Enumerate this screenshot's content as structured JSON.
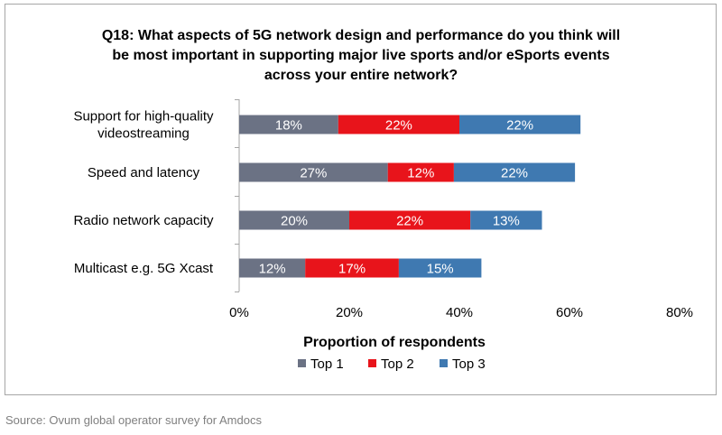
{
  "chart_data": {
    "type": "bar",
    "orientation": "horizontal",
    "stacked": true,
    "title_lines": [
      "Q18: What aspects of 5G network design and performance do you think will",
      "be most important in supporting major live sports and/or eSports events",
      "across your entire network?"
    ],
    "categories": [
      [
        "Support for high-quality",
        "videostreaming"
      ],
      [
        "Speed and latency"
      ],
      [
        "Radio network capacity"
      ],
      [
        "Multicast e.g. 5G Xcast"
      ]
    ],
    "series": [
      {
        "name": "Top 1",
        "color": "#6b7284",
        "values": [
          18,
          27,
          20,
          12
        ],
        "labels": [
          "18%",
          "27%",
          "20%",
          "12%"
        ]
      },
      {
        "name": "Top 2",
        "color": "#e8141b",
        "values": [
          22,
          12,
          22,
          17
        ],
        "labels": [
          "22%",
          "12%",
          "22%",
          "17%"
        ]
      },
      {
        "name": "Top 3",
        "color": "#3f79b1",
        "values": [
          22,
          22,
          13,
          15
        ],
        "labels": [
          "22%",
          "22%",
          "13%",
          "15%"
        ]
      }
    ],
    "xlim": [
      0,
      80
    ],
    "xticks": [
      0,
      20,
      40,
      60,
      80
    ],
    "xtick_labels": [
      "0%",
      "20%",
      "40%",
      "60%",
      "80%"
    ],
    "xlabel": "Proportion of respondents",
    "ylabel": "",
    "grid": false,
    "legend_position": "bottom"
  },
  "source": "Source: Ovum global operator survey for Amdocs"
}
